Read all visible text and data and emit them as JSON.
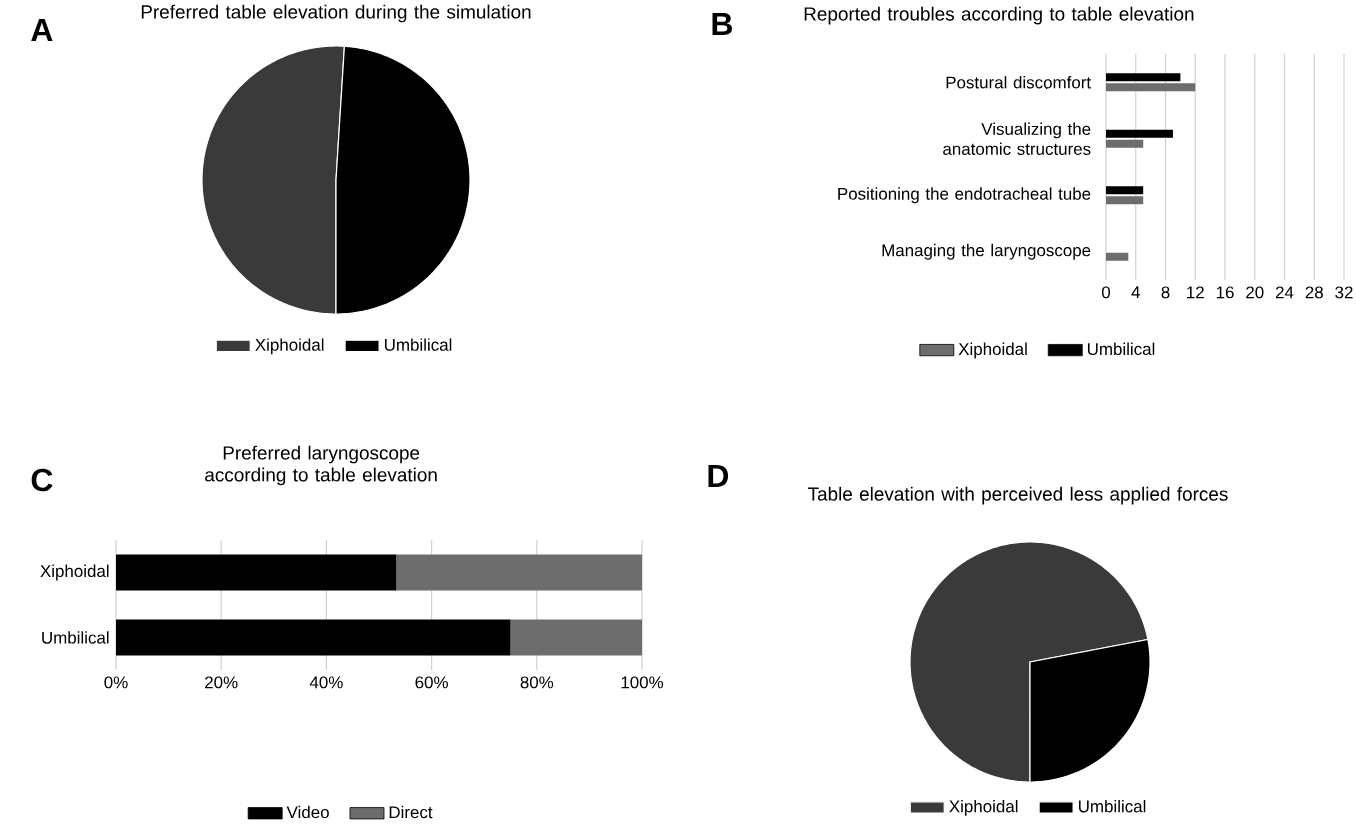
{
  "chart_data": [
    {
      "type": "pie",
      "title": "Preferred table elevation during the simulation",
      "annotations": [
        "A"
      ],
      "categories": [
        "Xiphoidal",
        "Umbilical"
      ],
      "values": [
        51,
        49
      ],
      "colors": [
        "#3a3a3a",
        "#000000"
      ],
      "legend": "bottom"
    },
    {
      "type": "bar",
      "orientation": "horizontal",
      "title": "Reported troubles according to table elevation",
      "annotations": [
        "B"
      ],
      "categories": [
        "Postural discomfort",
        "Visualizing the anatomic structures",
        "Positioning the endotracheal tube",
        "Managing the laryngoscope"
      ],
      "series": [
        {
          "name": "Xiphoidal",
          "color": "#6d6d6d",
          "values": [
            12,
            5,
            5,
            3
          ]
        },
        {
          "name": "Umbilical",
          "color": "#000000",
          "values": [
            10,
            9,
            5,
            0
          ]
        }
      ],
      "xlim": [
        0,
        32
      ],
      "xticks": [
        0,
        4,
        8,
        12,
        16,
        20,
        24,
        28,
        32
      ],
      "grid": "x",
      "legend": "bottom"
    },
    {
      "type": "bar",
      "orientation": "horizontal",
      "stacked": true,
      "title": "Preferred laryngoscope according to table elevation",
      "annotations": [
        "C"
      ],
      "categories": [
        "Xiphoidal",
        "Umbilical"
      ],
      "series": [
        {
          "name": "Video",
          "color": "#000000",
          "values": [
            53.3,
            75
          ]
        },
        {
          "name": "Direct",
          "color": "#6d6d6d",
          "values": [
            46.7,
            25
          ]
        }
      ],
      "xlim": [
        0,
        100
      ],
      "xticks": [
        {
          "value": 0,
          "label": "0%"
        },
        {
          "value": 20,
          "label": "20%"
        },
        {
          "value": 40,
          "label": "40%"
        },
        {
          "value": 60,
          "label": "60%"
        },
        {
          "value": 80,
          "label": "80%"
        },
        {
          "value": 100,
          "label": "100%"
        }
      ],
      "grid": "x",
      "legend": "bottom"
    },
    {
      "type": "pie",
      "title": "Table elevation with perceived less applied forces",
      "annotations": [
        "D"
      ],
      "categories": [
        "Xiphoidal",
        "Umbilical"
      ],
      "values": [
        72,
        28
      ],
      "colors": [
        "#3a3a3a",
        "#000000"
      ],
      "legend": "bottom"
    }
  ]
}
